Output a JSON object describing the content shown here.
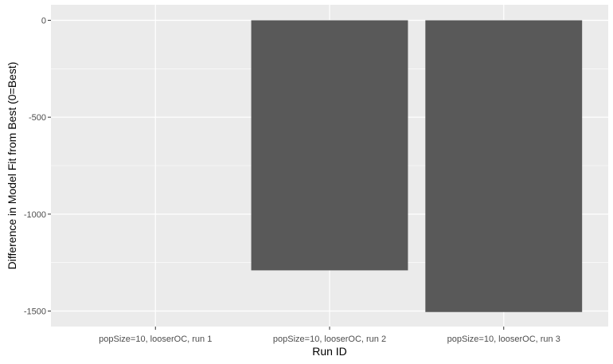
{
  "chart_data": {
    "type": "bar",
    "categories": [
      "popSize=10, looserOC, run 1",
      "popSize=10, looserOC, run 2",
      "popSize=10, looserOC, run 3"
    ],
    "values": [
      0,
      -1290,
      -1505
    ],
    "title": "",
    "xlabel": "Run ID",
    "ylabel": "Difference in Model Fit from Best (0=Best)",
    "ylim": [
      -1580,
      80
    ],
    "yticks": [
      0,
      -500,
      -1000,
      -1500
    ],
    "grid": true,
    "legend": "none",
    "colors": {
      "panel": "#ebebeb",
      "grid": "#ffffff",
      "bar": "#595959",
      "tick_text": "#4d4d4d"
    }
  }
}
